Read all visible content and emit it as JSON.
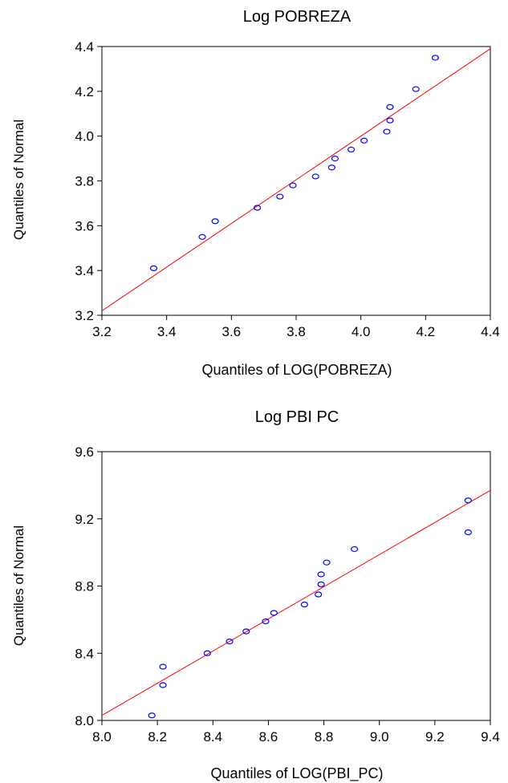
{
  "chart_data": [
    {
      "type": "scatter",
      "title": "Log POBREZA",
      "xlabel": "Quantiles of LOG(POBREZA)",
      "ylabel": "Quantiles of Normal",
      "xlim": [
        3.2,
        4.4
      ],
      "ylim": [
        3.2,
        4.4
      ],
      "xticks": [
        "3.2",
        "3.4",
        "3.6",
        "3.8",
        "4.0",
        "4.2",
        "4.4"
      ],
      "yticks": [
        "3.2",
        "3.4",
        "3.6",
        "3.8",
        "4.0",
        "4.2",
        "4.4"
      ],
      "grid": false,
      "reference_line": {
        "from": [
          3.2,
          3.22
        ],
        "to": [
          4.4,
          4.39
        ],
        "color": "#ff0000"
      },
      "marker_color": "#0000ff",
      "points": [
        {
          "x": 3.36,
          "y": 3.41
        },
        {
          "x": 3.51,
          "y": 3.55
        },
        {
          "x": 3.55,
          "y": 3.62
        },
        {
          "x": 3.68,
          "y": 3.68
        },
        {
          "x": 3.75,
          "y": 3.73
        },
        {
          "x": 3.79,
          "y": 3.78
        },
        {
          "x": 3.86,
          "y": 3.82
        },
        {
          "x": 3.91,
          "y": 3.86
        },
        {
          "x": 3.92,
          "y": 3.9
        },
        {
          "x": 3.97,
          "y": 3.94
        },
        {
          "x": 4.01,
          "y": 3.98
        },
        {
          "x": 4.08,
          "y": 4.02
        },
        {
          "x": 4.09,
          "y": 4.07
        },
        {
          "x": 4.09,
          "y": 4.13
        },
        {
          "x": 4.17,
          "y": 4.21
        },
        {
          "x": 4.23,
          "y": 4.35
        }
      ]
    },
    {
      "type": "scatter",
      "title": "Log PBI PC",
      "xlabel": "Quantiles of LOG(PBI_PC)",
      "ylabel": "Quantiles of Normal",
      "xlim": [
        8.0,
        9.4
      ],
      "ylim": [
        8.0,
        9.6
      ],
      "xticks": [
        "8.0",
        "8.2",
        "8.4",
        "8.6",
        "8.8",
        "9.0",
        "9.2",
        "9.4"
      ],
      "yticks": [
        "8.0",
        "8.4",
        "8.8",
        "9.2",
        "9.6"
      ],
      "grid": false,
      "reference_line": {
        "from": [
          8.0,
          8.03
        ],
        "to": [
          9.4,
          9.37
        ],
        "color": "#ff0000"
      },
      "marker_color": "#0000ff",
      "points": [
        {
          "x": 8.18,
          "y": 8.03
        },
        {
          "x": 8.22,
          "y": 8.21
        },
        {
          "x": 8.22,
          "y": 8.32
        },
        {
          "x": 8.38,
          "y": 8.4
        },
        {
          "x": 8.46,
          "y": 8.47
        },
        {
          "x": 8.52,
          "y": 8.53
        },
        {
          "x": 8.59,
          "y": 8.59
        },
        {
          "x": 8.62,
          "y": 8.64
        },
        {
          "x": 8.73,
          "y": 8.69
        },
        {
          "x": 8.78,
          "y": 8.75
        },
        {
          "x": 8.79,
          "y": 8.81
        },
        {
          "x": 8.79,
          "y": 8.87
        },
        {
          "x": 8.81,
          "y": 8.94
        },
        {
          "x": 8.91,
          "y": 9.02
        },
        {
          "x": 9.32,
          "y": 9.12
        },
        {
          "x": 9.32,
          "y": 9.31
        }
      ]
    }
  ]
}
